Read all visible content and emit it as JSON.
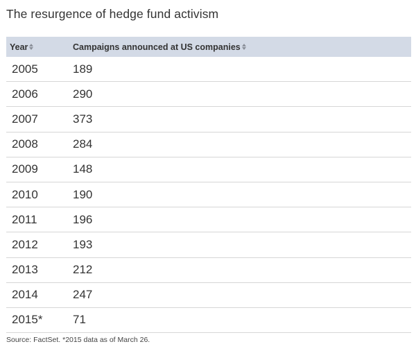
{
  "title": "The resurgence of hedge fund activism",
  "chart_data": {
    "type": "table",
    "columns": [
      "Year",
      "Campaigns announced at US companies"
    ],
    "rows": [
      [
        "2005",
        "189"
      ],
      [
        "2006",
        "290"
      ],
      [
        "2007",
        "373"
      ],
      [
        "2008",
        "284"
      ],
      [
        "2009",
        "148"
      ],
      [
        "2010",
        "190"
      ],
      [
        "2011",
        "196"
      ],
      [
        "2012",
        "193"
      ],
      [
        "2013",
        "212"
      ],
      [
        "2014",
        "247"
      ],
      [
        "2015*",
        "71"
      ]
    ]
  },
  "source": "Source: FactSet. *2015 data as of March 26.",
  "colors": {
    "header_bg": "#d3dae6",
    "row_border": "#d6d6d6",
    "text": "#333333"
  },
  "icons": {
    "sort": "sort-arrows-icon"
  }
}
